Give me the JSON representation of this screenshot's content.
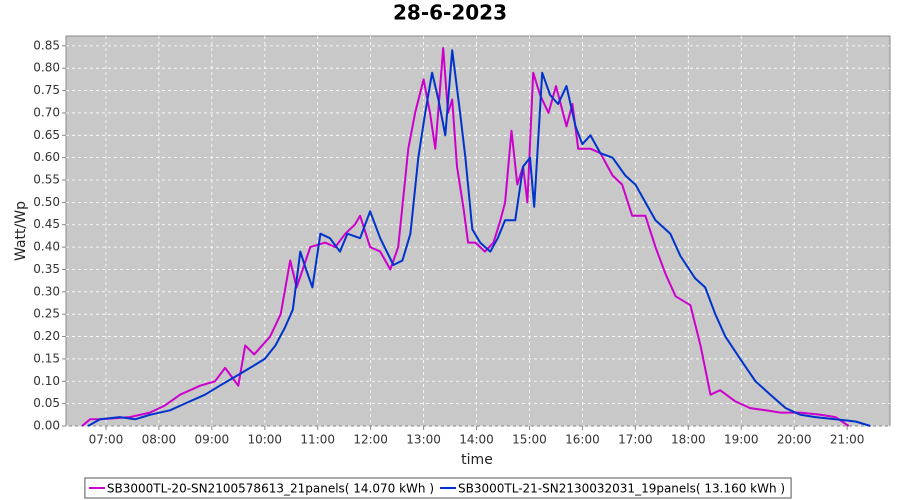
{
  "chart_data": {
    "type": "line",
    "title": "28-6-2023",
    "x_label": "time",
    "y_label": "Watt/Wp",
    "xlim": [
      6.245,
      21.81
    ],
    "ylim": [
      0,
      0.872
    ],
    "xticks": [
      {
        "value": 7,
        "label": "07:00"
      },
      {
        "value": 8,
        "label": "08:00"
      },
      {
        "value": 9,
        "label": "09:00"
      },
      {
        "value": 10,
        "label": "10:00"
      },
      {
        "value": 11,
        "label": "11:00"
      },
      {
        "value": 12,
        "label": "12:00"
      },
      {
        "value": 13,
        "label": "13:00"
      },
      {
        "value": 14,
        "label": "14:00"
      },
      {
        "value": 15,
        "label": "15:00"
      },
      {
        "value": 16,
        "label": "16:00"
      },
      {
        "value": 17,
        "label": "17:00"
      },
      {
        "value": 18,
        "label": "18:00"
      },
      {
        "value": 19,
        "label": "19:00"
      },
      {
        "value": 20,
        "label": "20:00"
      },
      {
        "value": 21,
        "label": "21:00"
      }
    ],
    "yticks": [
      {
        "value": 0,
        "label": "0.00"
      },
      {
        "value": 0.05,
        "label": "0.05"
      },
      {
        "value": 0.1,
        "label": "0.10"
      },
      {
        "value": 0.15,
        "label": "0.15"
      },
      {
        "value": 0.2,
        "label": "0.20"
      },
      {
        "value": 0.25,
        "label": "0.25"
      },
      {
        "value": 0.3,
        "label": "0.30"
      },
      {
        "value": 0.35,
        "label": "0.35"
      },
      {
        "value": 0.4,
        "label": "0.40"
      },
      {
        "value": 0.45,
        "label": "0.45"
      },
      {
        "value": 0.5,
        "label": "0.50"
      },
      {
        "value": 0.55,
        "label": "0.55"
      },
      {
        "value": 0.6,
        "label": "0.60"
      },
      {
        "value": 0.65,
        "label": "0.65"
      },
      {
        "value": 0.7,
        "label": "0.70"
      },
      {
        "value": 0.75,
        "label": "0.75"
      },
      {
        "value": 0.8,
        "label": "0.80"
      },
      {
        "value": 0.85,
        "label": "0.85"
      }
    ],
    "grid": true,
    "background": "#c8c8c8",
    "legend": "bottom",
    "series": [
      {
        "name": "SB3000TL-20-SN2100578613_21panels( 14.070 kWh )",
        "color": "#cc00cc",
        "x": [
          6.55,
          6.7,
          6.9,
          7.45,
          7.83,
          8.1,
          8.4,
          8.78,
          9.06,
          9.25,
          9.5,
          9.63,
          9.8,
          10.1,
          10.3,
          10.48,
          10.6,
          10.86,
          11.14,
          11.33,
          11.52,
          11.7,
          11.8,
          11.99,
          12.18,
          12.37,
          12.52,
          12.71,
          12.84,
          13.0,
          13.12,
          13.22,
          13.37,
          13.46,
          13.54,
          13.63,
          13.75,
          13.84,
          13.98,
          14.16,
          14.32,
          14.45,
          14.54,
          14.66,
          14.77,
          14.88,
          14.96,
          15.07,
          15.2,
          15.36,
          15.5,
          15.7,
          15.81,
          15.92,
          16.15,
          16.34,
          16.57,
          16.75,
          16.94,
          17.19,
          17.38,
          17.57,
          17.76,
          18.04,
          18.23,
          18.42,
          18.6,
          18.89,
          19.17,
          19.46,
          19.74,
          20.12,
          20.5,
          20.78,
          21.03
        ],
        "values": [
          0,
          0.015,
          0.015,
          0.02,
          0.03,
          0.045,
          0.07,
          0.09,
          0.1,
          0.13,
          0.09,
          0.18,
          0.16,
          0.2,
          0.25,
          0.37,
          0.31,
          0.4,
          0.41,
          0.4,
          0.43,
          0.45,
          0.47,
          0.4,
          0.39,
          0.35,
          0.4,
          0.62,
          0.7,
          0.775,
          0.7,
          0.62,
          0.845,
          0.7,
          0.73,
          0.58,
          0.49,
          0.41,
          0.41,
          0.39,
          0.41,
          0.46,
          0.5,
          0.66,
          0.54,
          0.58,
          0.5,
          0.79,
          0.74,
          0.7,
          0.76,
          0.67,
          0.72,
          0.62,
          0.62,
          0.61,
          0.56,
          0.54,
          0.47,
          0.47,
          0.4,
          0.34,
          0.29,
          0.27,
          0.18,
          0.07,
          0.08,
          0.055,
          0.04,
          0.035,
          0.03,
          0.03,
          0.025,
          0.02,
          0
        ]
      },
      {
        "name": "SB3000TL-21-SN2130032031_19panels( 13.160 kWh )",
        "color": "#0033cc",
        "x": [
          6.66,
          6.89,
          7.26,
          7.55,
          7.83,
          8.21,
          8.49,
          8.87,
          9.15,
          9.44,
          9.72,
          10.0,
          10.2,
          10.38,
          10.53,
          10.67,
          10.78,
          10.9,
          11.05,
          11.23,
          11.42,
          11.56,
          11.8,
          11.99,
          12.18,
          12.43,
          12.6,
          12.75,
          12.9,
          13.03,
          13.16,
          13.28,
          13.41,
          13.54,
          13.69,
          13.79,
          13.92,
          14.07,
          14.26,
          14.4,
          14.54,
          14.73,
          14.88,
          15.01,
          15.09,
          15.24,
          15.39,
          15.54,
          15.7,
          15.87,
          16.0,
          16.15,
          16.34,
          16.57,
          16.81,
          17.0,
          17.19,
          17.38,
          17.66,
          17.85,
          18.13,
          18.32,
          18.51,
          18.7,
          18.98,
          19.27,
          19.55,
          19.84,
          20.12,
          20.4,
          20.78,
          21.16,
          21.44
        ],
        "values": [
          0,
          0.015,
          0.02,
          0.015,
          0.025,
          0.035,
          0.05,
          0.07,
          0.09,
          0.11,
          0.13,
          0.15,
          0.18,
          0.22,
          0.26,
          0.39,
          0.35,
          0.31,
          0.43,
          0.42,
          0.39,
          0.43,
          0.42,
          0.48,
          0.42,
          0.36,
          0.37,
          0.43,
          0.6,
          0.7,
          0.79,
          0.73,
          0.65,
          0.84,
          0.7,
          0.6,
          0.44,
          0.41,
          0.39,
          0.42,
          0.46,
          0.46,
          0.58,
          0.6,
          0.49,
          0.79,
          0.74,
          0.72,
          0.76,
          0.67,
          0.63,
          0.65,
          0.61,
          0.6,
          0.56,
          0.54,
          0.5,
          0.46,
          0.43,
          0.38,
          0.33,
          0.31,
          0.25,
          0.2,
          0.15,
          0.1,
          0.07,
          0.04,
          0.025,
          0.02,
          0.015,
          0.01,
          0
        ]
      }
    ]
  }
}
